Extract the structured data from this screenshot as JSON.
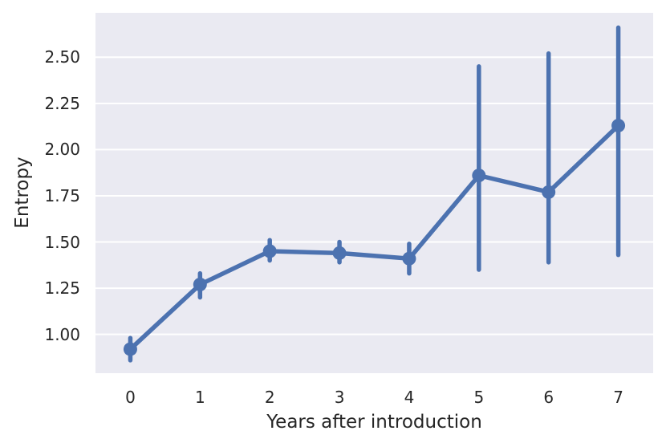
{
  "chart_data": {
    "type": "line",
    "title": "",
    "xlabel": "Years after introduction",
    "ylabel": "Entropy",
    "x": [
      0,
      1,
      2,
      3,
      4,
      5,
      6,
      7
    ],
    "series": [
      {
        "name": "entropy",
        "values": [
          0.92,
          1.27,
          1.45,
          1.44,
          1.41,
          1.86,
          1.77,
          2.13
        ],
        "ci_low": [
          0.86,
          1.2,
          1.4,
          1.39,
          1.33,
          1.35,
          1.39,
          1.43
        ],
        "ci_high": [
          0.98,
          1.33,
          1.51,
          1.5,
          1.49,
          2.45,
          2.52,
          2.66
        ]
      }
    ],
    "xtick_labels": [
      "0",
      "1",
      "2",
      "3",
      "4",
      "5",
      "6",
      "7"
    ],
    "yticks": [
      1.0,
      1.25,
      1.5,
      1.75,
      2.0,
      2.25,
      2.5
    ],
    "ytick_labels": [
      "1.00",
      "1.25",
      "1.50",
      "1.75",
      "2.00",
      "2.25",
      "2.50"
    ],
    "xlim": [
      -0.5,
      7.5
    ],
    "ylim": [
      0.79,
      2.74
    ],
    "grid": "horizontal",
    "legend": null,
    "marker": "circle",
    "colors": {
      "line": "#4c72b0",
      "marker": "#4c72b0",
      "error_bar": "#4c72b0",
      "plot_bg": "#eaeaf2",
      "grid": "#ffffff",
      "text": "#262626",
      "figure_bg": "#ffffff"
    }
  }
}
